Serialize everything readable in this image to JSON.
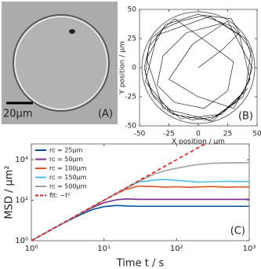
{
  "image_panel": {
    "scale_label": "20μm",
    "panel_label": "(A)"
  },
  "chart_data": [
    {
      "type": "line",
      "panel_label": "(B)",
      "xlabel": "X position / μm",
      "ylabel": "Y position / μm",
      "xlim": [
        -50,
        50
      ],
      "ylim": [
        -50,
        50
      ],
      "xticks": [
        -50,
        -25,
        0,
        25,
        50
      ],
      "yticks": [
        -50,
        -25,
        0,
        25,
        50
      ],
      "xscale": "linear",
      "yscale": "linear",
      "color": "#000000",
      "boundary_radius": 48,
      "x": [
        0,
        20,
        35,
        28,
        5,
        -15,
        -30,
        -42,
        -45,
        -38,
        -25,
        -5,
        15,
        32,
        43,
        46,
        40,
        20,
        -10,
        -30,
        -35,
        -20,
        5,
        25,
        30,
        10,
        -20,
        -40,
        -46,
        -40,
        -15,
        20,
        40,
        45,
        30,
        0,
        -28,
        -44,
        -30,
        10,
        38,
        46,
        25,
        -5,
        -25,
        0,
        30,
        44,
        35,
        10,
        -35,
        -45,
        -22,
        12,
        42
      ],
      "values": [
        0,
        15,
        30,
        42,
        45,
        40,
        33,
        18,
        -5,
        -25,
        -38,
        -45,
        -42,
        -30,
        -12,
        8,
        25,
        38,
        30,
        10,
        -15,
        -30,
        -35,
        -20,
        5,
        20,
        42,
        25,
        0,
        -22,
        -44,
        -40,
        -20,
        15,
        35,
        46,
        37,
        8,
        -35,
        -45,
        -25,
        0,
        40,
        20,
        -10,
        -25,
        -35,
        -10,
        28,
        44,
        28,
        -12,
        -40,
        -46,
        -18
      ]
    },
    {
      "type": "line",
      "panel_label": "(C)",
      "xlabel": "Time t / s",
      "ylabel": "MSD / μm²",
      "xlim": [
        1,
        1000
      ],
      "ylim": [
        1,
        60000
      ],
      "xscale": "log",
      "yscale": "log",
      "legend": "upper left",
      "xticks": [
        {
          "value": 1,
          "label": "10⁰"
        },
        {
          "value": 10,
          "label": "10¹"
        },
        {
          "value": 100,
          "label": "10²"
        },
        {
          "value": 1000,
          "label": "10³"
        }
      ],
      "yticks": [
        {
          "value": 1,
          "label": "10⁰"
        },
        {
          "value": 100,
          "label": "10²"
        },
        {
          "value": 10000,
          "label": "10⁴"
        }
      ],
      "x": [
        1,
        1.5,
        2,
        3,
        5,
        7,
        10,
        15,
        20,
        30,
        50,
        70,
        100,
        150,
        200,
        300,
        500,
        700,
        1000
      ],
      "series": [
        {
          "name": "rc = 25μm",
          "color": "#0b4f9c",
          "values": [
            1,
            2.2,
            3.9,
            8.5,
            21,
            35,
            48,
            55,
            52,
            50,
            50,
            50,
            50,
            50,
            50,
            50,
            50,
            50,
            50
          ]
        },
        {
          "name": "rc = 50μm",
          "color": "#7b2d8e",
          "values": [
            1,
            2.2,
            4,
            8.8,
            24,
            44,
            75,
            105,
            115,
            110,
            110,
            110,
            110,
            110,
            110,
            110,
            110,
            110,
            110
          ]
        },
        {
          "name": "rc = 100μm",
          "color": "#d9541e",
          "values": [
            1,
            2.25,
            4,
            9,
            25,
            49,
            98,
            210,
            340,
            500,
            470,
            440,
            460,
            430,
            450,
            470,
            440,
            450,
            450
          ]
        },
        {
          "name": "rc = 150μm",
          "color": "#4dbeee",
          "values": [
            1,
            2.25,
            4,
            9,
            25,
            49,
            99,
            220,
            380,
            780,
            1000,
            1050,
            950,
            850,
            780,
            820,
            860,
            830,
            840
          ]
        },
        {
          "name": "rc = 500μm",
          "color": "#a0a0a0",
          "values": [
            1,
            2.25,
            4,
            9,
            25,
            49,
            100,
            224,
            398,
            850,
            2000,
            2900,
            3800,
            5000,
            5800,
            6600,
            7000,
            7100,
            7000
          ]
        },
        {
          "name": "fit: ~t²",
          "color": "#e02020",
          "linestyle": "dashed",
          "x": [
            1,
            10,
            100,
            250
          ],
          "values": [
            1,
            100,
            10000,
            62500
          ]
        }
      ]
    }
  ]
}
